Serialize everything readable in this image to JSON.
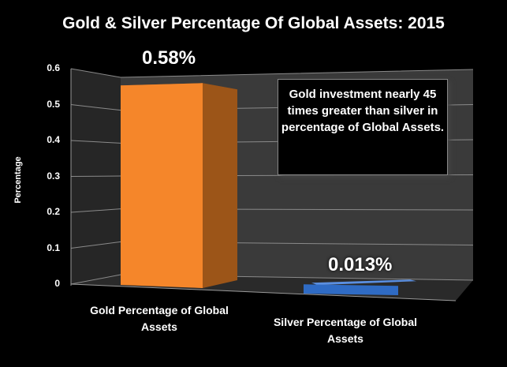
{
  "chart_data": {
    "type": "bar",
    "title": "Gold & Silver Percentage Of Global Assets: 2015",
    "ylabel": "Percentage",
    "xlabel": "",
    "ylim": [
      0,
      0.6
    ],
    "yticks": [
      "0",
      "0.1",
      "0.2",
      "0.3",
      "0.4",
      "0.5",
      "0.6"
    ],
    "categories": [
      "Gold Percentage of Global Assets",
      "Silver Percentage of Global Assets"
    ],
    "values": [
      0.58,
      0.013
    ],
    "data_labels": [
      "0.58%",
      "0.013%"
    ],
    "colors": [
      "#f5862a",
      "#2f6bc4"
    ],
    "annotation": "Gold investment nearly 45 times greater than silver in percentage of Global Assets.",
    "grid": true
  }
}
